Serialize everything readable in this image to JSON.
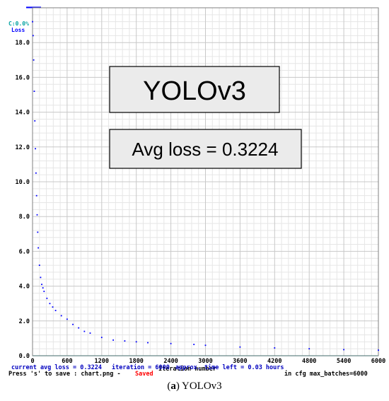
{
  "caption": {
    "label": "a",
    "text": " YOLOv3"
  },
  "overlay": {
    "model_name": "YOLOv3",
    "avg_loss_text": "Avg loss = 0.3224"
  },
  "status": {
    "current_avg_loss": "current avg loss = 0.3224",
    "iteration": "iteration = 6000",
    "time_left": "approx. time left = 0.03 hours",
    "save_hint": "Press 's' to save : chart.png -",
    "saved": "Saved",
    "max_batches": "in cfg max_batches=6000"
  },
  "colors": {
    "loss": "#0000ff",
    "map": "#00a0a0",
    "saved": "#ff0000",
    "grid_major": "#c8c8c8",
    "grid_minor": "#e6e6e6"
  },
  "chart_data": {
    "type": "scatter",
    "title": "",
    "xlabel": "Iteration number",
    "ylabel": "",
    "legend": [
      "C:0.0%",
      "Loss"
    ],
    "xlim": [
      0,
      6000
    ],
    "ylim": [
      0,
      20
    ],
    "x_ticks": [
      "0",
      "600",
      "1200",
      "1800",
      "2400",
      "3000",
      "3600",
      "4200",
      "4800",
      "5400",
      "6000"
    ],
    "y_ticks": [
      "0.0",
      "2.0",
      "4.0",
      "6.0",
      "8.0",
      "10.0",
      "12.0",
      "14.0",
      "16.0",
      "18.0"
    ],
    "grid": true,
    "series": [
      {
        "name": "Loss",
        "x": [
          0,
          10,
          20,
          30,
          40,
          50,
          60,
          70,
          80,
          90,
          100,
          120,
          140,
          160,
          180,
          200,
          250,
          300,
          350,
          400,
          500,
          600,
          700,
          800,
          900,
          1000,
          1200,
          1400,
          1600,
          1800,
          2000,
          2400,
          2800,
          3000,
          3600,
          4200,
          4800,
          5400,
          6000
        ],
        "y": [
          19.2,
          18.4,
          17.0,
          15.2,
          13.5,
          11.9,
          10.5,
          9.2,
          8.1,
          7.1,
          6.2,
          5.2,
          4.5,
          4.1,
          3.9,
          3.7,
          3.3,
          3.0,
          2.8,
          2.6,
          2.3,
          2.1,
          1.8,
          1.6,
          1.4,
          1.3,
          1.05,
          0.9,
          0.85,
          0.8,
          0.75,
          0.7,
          0.65,
          0.6,
          0.5,
          0.45,
          0.4,
          0.35,
          0.32
        ]
      }
    ]
  }
}
